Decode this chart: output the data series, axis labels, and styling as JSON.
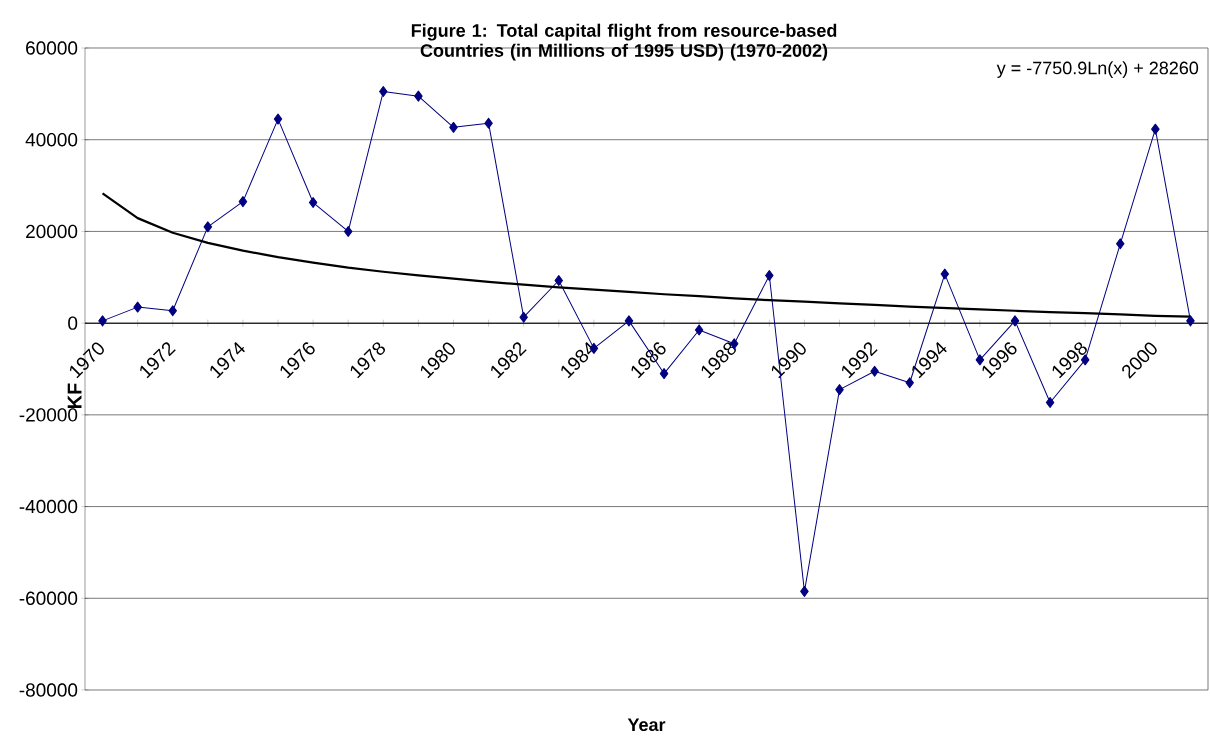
{
  "chart_data": {
    "type": "line",
    "title": "Figure 1: Total capital flight from resource-based Countries (in Millions of 1995  USD) (1970-2002)",
    "xlabel": "Year",
    "ylabel": "KF",
    "categories": [
      "1970",
      null,
      "1972",
      null,
      "1974",
      null,
      "1976",
      null,
      "1978",
      null,
      "1980",
      null,
      "1982",
      null,
      "1984",
      null,
      "1986",
      null,
      "1988",
      null,
      "1990",
      null,
      "1992",
      null,
      "1994",
      null,
      "1996",
      null,
      "1998",
      null,
      "2000",
      null
    ],
    "series": [
      {
        "color": "#000080",
        "marker": "diamond",
        "values": [
          500,
          3500,
          2700,
          21000,
          26500,
          44500,
          26300,
          20000,
          50500,
          49500,
          42700,
          43600,
          1300,
          9300,
          -5500,
          500,
          -11000,
          -1500,
          -4500,
          10400,
          -58500,
          -14500,
          -10500,
          -13000,
          10700,
          -8000,
          500,
          -17300,
          -8000,
          17300,
          42300,
          500
        ]
      },
      {
        "color": "#000000",
        "marker": "none",
        "values": [
          28300,
          22900,
          19700,
          17500,
          15800,
          14400,
          13200,
          12100,
          11200,
          10400,
          9700,
          9000,
          8400,
          7800,
          7300,
          6800,
          6300,
          5900,
          5400,
          5000,
          4700,
          4300,
          4000,
          3600,
          3300,
          3000,
          2700,
          2400,
          2200,
          1900,
          1600,
          1400
        ]
      }
    ],
    "annotations": [
      "y = -7750.9Ln(x) + 28260"
    ],
    "ylim": [
      -80000,
      60000
    ],
    "yticks": [
      -80000,
      -60000,
      -40000,
      -20000,
      0,
      20000,
      40000,
      60000
    ],
    "grid": "y"
  }
}
